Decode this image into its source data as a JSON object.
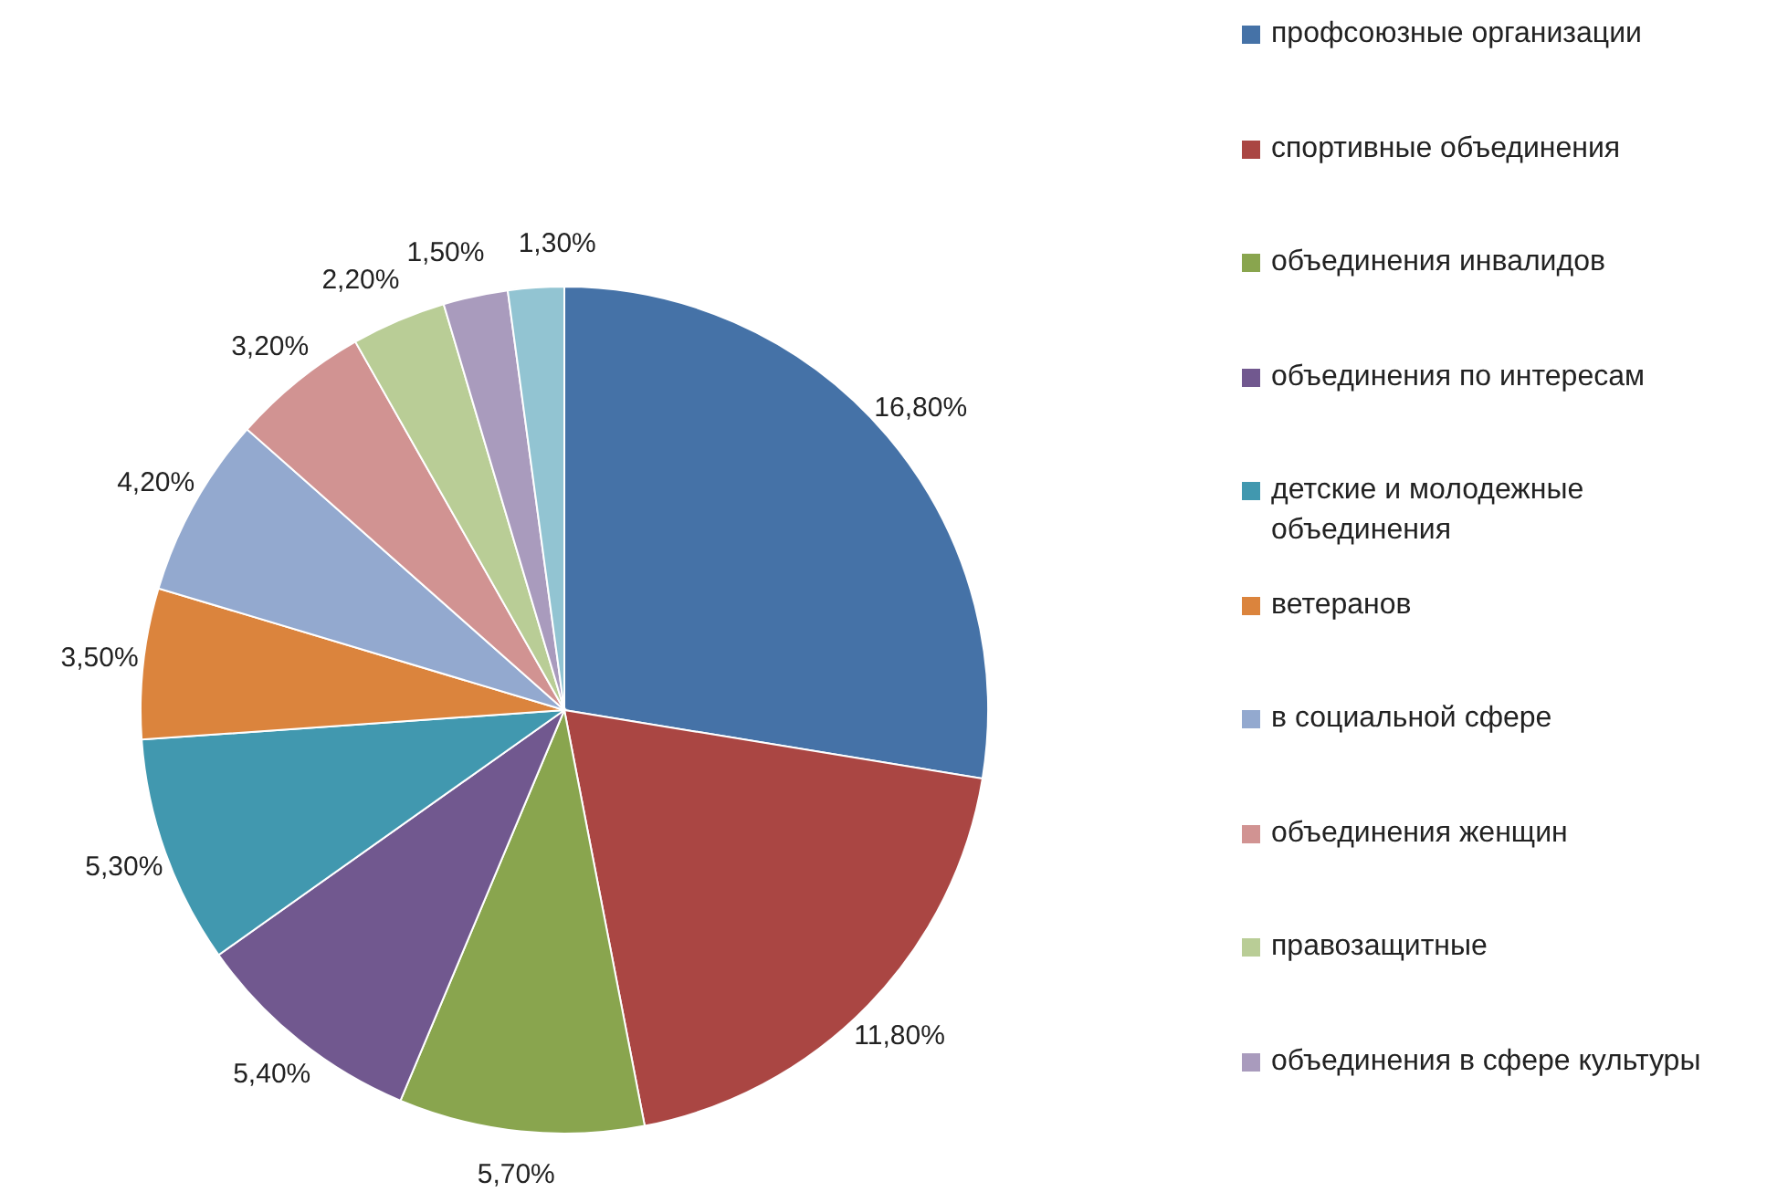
{
  "chart_data": {
    "type": "pie",
    "categories": [
      "профсоюзные организации",
      "спортивные объединения",
      "объединения инвалидов",
      "объединения по интересам",
      "детские и молодежные объединения",
      "ветеранов",
      "в социальной сфере",
      "объединения женщин",
      "правозащитные",
      "объединения в сфере культуры",
      null
    ],
    "values": [
      16.8,
      11.8,
      5.7,
      5.4,
      5.3,
      3.5,
      4.2,
      3.2,
      2.2,
      1.5,
      1.3
    ],
    "value_labels": [
      "16,80%",
      "11,80%",
      "5,70%",
      "5,40%",
      "5,30%",
      "3,50%",
      "4,20%",
      "3,20%",
      "2,20%",
      "1,50%",
      "1,30%"
    ],
    "colors": [
      "#4572a7",
      "#aa4643",
      "#89a54e",
      "#71588f",
      "#4198af",
      "#db843d",
      "#93a9cf",
      "#d19392",
      "#b9cd96",
      "#a99bbd",
      "#92c4d2"
    ],
    "legend": "top right"
  }
}
